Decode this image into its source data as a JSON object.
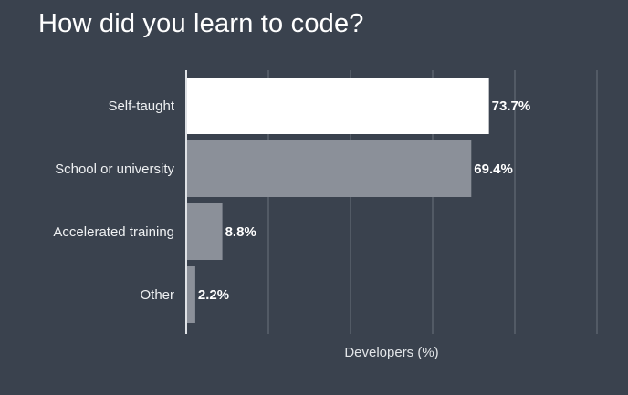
{
  "chart_data": {
    "type": "bar",
    "orientation": "horizontal",
    "title": "How did you learn to code?",
    "xlabel": "Developers (%)",
    "ylabel": "",
    "categories": [
      "Self-taught",
      "School or university",
      "Accelerated training",
      "Other"
    ],
    "values": [
      73.7,
      69.4,
      8.8,
      2.2
    ],
    "value_labels": [
      "73.7%",
      "69.4%",
      "8.8%",
      "2.2%"
    ],
    "xlim": [
      0,
      100
    ],
    "grid": true,
    "legend": "none",
    "colors": {
      "background": "#3a424e",
      "highlight_bar": "#ffffff",
      "bar": "#8b9099",
      "grid": "#6a717c",
      "axis": "#dfe2e6"
    }
  }
}
